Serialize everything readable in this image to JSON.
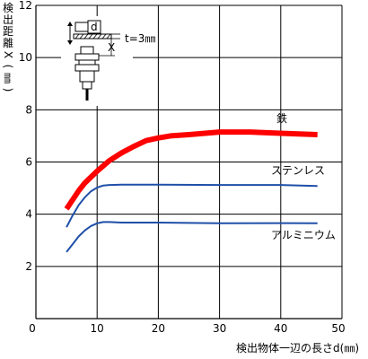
{
  "chart_data": {
    "type": "line",
    "xlabel": "検出物体一辺の長さd(㎜)",
    "ylabel": "検出距離X(㎜)",
    "xlim": [
      0,
      50
    ],
    "ylim": [
      0,
      12
    ],
    "x_ticks": [
      0,
      10,
      20,
      30,
      40,
      50
    ],
    "y_ticks": [
      2,
      4,
      6,
      8,
      10,
      12
    ],
    "grid": true,
    "inset": {
      "d_label": "d",
      "x_label": "X",
      "t_label": "t=3㎜"
    },
    "series": [
      {
        "name": "鉄",
        "color": "#ff0000",
        "x": [
          5,
          6,
          7,
          8,
          10,
          12,
          14,
          16,
          18,
          20,
          22,
          25,
          30,
          35,
          40,
          46
        ],
        "y": [
          4.2,
          4.55,
          4.9,
          5.2,
          5.65,
          6.05,
          6.35,
          6.6,
          6.82,
          6.92,
          7.0,
          7.05,
          7.15,
          7.15,
          7.1,
          7.05
        ]
      },
      {
        "name": "ステンレス",
        "color": "#1f4fa8",
        "x": [
          5,
          6,
          7,
          8,
          9,
          10,
          11,
          12,
          14,
          20,
          30,
          40,
          46
        ],
        "y": [
          3.5,
          3.95,
          4.35,
          4.65,
          4.88,
          5.02,
          5.1,
          5.12,
          5.13,
          5.13,
          5.12,
          5.12,
          5.08
        ]
      },
      {
        "name": "アルミニウム",
        "color": "#1f4fa8",
        "x": [
          5,
          6,
          7,
          8,
          9,
          10,
          11,
          12,
          14,
          20,
          30,
          40,
          46
        ],
        "y": [
          2.55,
          2.85,
          3.15,
          3.38,
          3.55,
          3.65,
          3.7,
          3.7,
          3.68,
          3.68,
          3.65,
          3.66,
          3.65
        ]
      }
    ]
  }
}
